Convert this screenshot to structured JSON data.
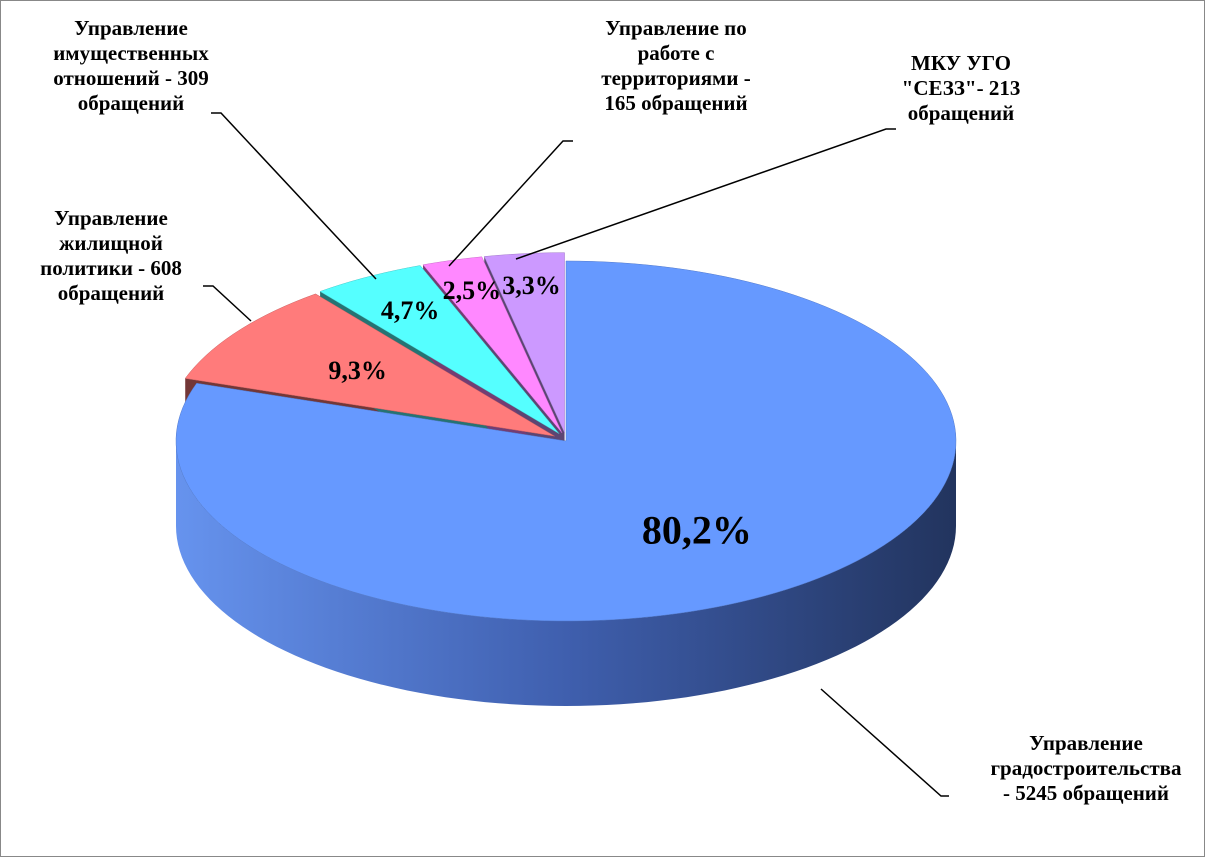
{
  "chart_data": {
    "type": "pie",
    "categories": [
      "Управление\nградостроительства\n- 5245 обращений",
      "Управление\nжилищной\nполитики - 608\nобращений",
      "Управление\nимущественных\nотношений - 309\nобращений",
      "Управление по\nработе с\nтерриториями -\n165 обращений",
      "МКУ УГО\n\"СЕЗЗ\"- 213\nобращений"
    ],
    "values": [
      80.2,
      9.3,
      4.7,
      2.5,
      3.3
    ],
    "value_labels": [
      "80,2%",
      "9,3%",
      "4,7%",
      "2,5%",
      "3,3%"
    ],
    "colors": [
      "#6699ff",
      "#ff7b7b",
      "#55ffff",
      "#ff88ff",
      "#cc99ff"
    ]
  }
}
